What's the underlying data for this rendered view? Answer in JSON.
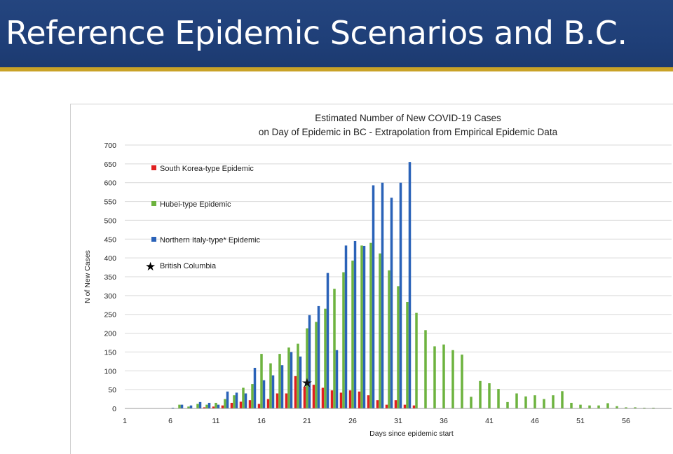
{
  "header": {
    "title": "Reference Epidemic Scenarios and B.C."
  },
  "colors": {
    "south_korea": "#e02020",
    "hubei": "#6db33f",
    "italy": "#2a62b8",
    "bc": "#111111",
    "header_bg": "#22437c",
    "accent_rule": "#c9a227"
  },
  "chart_data": {
    "type": "bar",
    "title_lines": [
      "Estimated Number of New COVID-19 Cases",
      "on Day of Epidemic in BC  - Extrapolation from Empirical Epidemic Data"
    ],
    "xlabel": "Days since epidemic start",
    "ylabel": "N of New Cases",
    "xlim": [
      1,
      60
    ],
    "ylim": [
      0,
      700
    ],
    "y_ticks": [
      0,
      50,
      100,
      150,
      200,
      250,
      300,
      350,
      400,
      450,
      500,
      550,
      600,
      650,
      700
    ],
    "x_ticks": [
      1,
      6,
      11,
      16,
      21,
      26,
      31,
      36,
      41,
      46,
      51,
      56
    ],
    "grid": "horizontal",
    "legend_placement": "top-left",
    "series": [
      {
        "name": "South Korea-type Epidemic",
        "key": "south_korea",
        "x": [
          10,
          11,
          12,
          13,
          14,
          15,
          16,
          17,
          18,
          19,
          20,
          21,
          22,
          23,
          24,
          25,
          26,
          27,
          28,
          29,
          30,
          31,
          32,
          33
        ],
        "values": [
          3,
          5,
          8,
          15,
          18,
          22,
          12,
          25,
          40,
          40,
          86,
          58,
          63,
          55,
          48,
          42,
          48,
          45,
          35,
          22,
          10,
          22,
          10,
          8
        ]
      },
      {
        "name": "Hubei-type Epidemic",
        "key": "hubei",
        "x": [
          7,
          8,
          9,
          10,
          11,
          12,
          13,
          14,
          15,
          16,
          17,
          18,
          19,
          20,
          21,
          22,
          23,
          24,
          25,
          26,
          27,
          28,
          29,
          30,
          31,
          32,
          33,
          34,
          35,
          36,
          37,
          38,
          39,
          40,
          41,
          42,
          43,
          44,
          45,
          46,
          47,
          48,
          49,
          50,
          51,
          52,
          53,
          54,
          55,
          56,
          57,
          58,
          59
        ],
        "values": [
          10,
          5,
          12,
          10,
          15,
          25,
          35,
          55,
          65,
          145,
          120,
          145,
          162,
          172,
          213,
          230,
          265,
          318,
          362,
          393,
          433,
          440,
          412,
          367,
          325,
          283,
          254,
          208,
          165,
          170,
          155,
          143,
          31,
          73,
          67,
          52,
          17,
          40,
          32,
          35,
          25,
          35,
          46,
          15,
          10,
          8,
          8,
          14,
          6,
          3,
          3,
          2,
          2
        ]
      },
      {
        "name": "Northern Italy-type* Epidemic",
        "key": "italy",
        "x": [
          6,
          7,
          8,
          9,
          10,
          11,
          12,
          13,
          14,
          15,
          16,
          17,
          18,
          19,
          20,
          21,
          22,
          23,
          24,
          25,
          26,
          27,
          28,
          29,
          30,
          31,
          32
        ],
        "values": [
          2,
          10,
          8,
          17,
          15,
          10,
          45,
          42,
          40,
          108,
          75,
          88,
          115,
          150,
          138,
          248,
          272,
          360,
          155,
          433,
          445,
          432,
          593,
          600,
          560,
          600,
          655
        ]
      }
    ],
    "markers": [
      {
        "name": "British Columbia",
        "key": "bc",
        "x": 21,
        "y": 70
      }
    ]
  }
}
